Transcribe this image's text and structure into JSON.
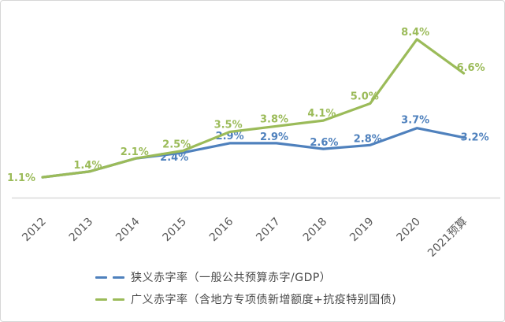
{
  "chart_data": {
    "type": "line",
    "categories": [
      "2012",
      "2013",
      "2014",
      "2015",
      "2016",
      "2017",
      "2018",
      "2019",
      "2020",
      "2021预算"
    ],
    "series": [
      {
        "key": "narrow",
        "name": "狭义赤字率（一般公共预算赤字/GDP）",
        "color": "#4F81BD",
        "values": [
          1.1,
          1.4,
          2.1,
          2.4,
          2.9,
          2.9,
          2.6,
          2.8,
          3.7,
          3.2
        ],
        "point_labels": [
          "",
          "",
          "",
          "2.4%",
          "2.9%",
          "2.9%",
          "2.6%",
          "2.8%",
          "3.7%",
          "3.2%"
        ]
      },
      {
        "key": "broad",
        "name": "广义赤字率（含地方专项债新增额度+抗疫特别国债)",
        "color": "#9BBB59",
        "values": [
          1.1,
          1.4,
          2.1,
          2.5,
          3.5,
          3.8,
          4.1,
          5.0,
          8.4,
          6.6
        ],
        "point_labels": [
          "1.1%",
          "1.4%",
          "2.1%",
          "2.5%",
          "3.5%",
          "3.8%",
          "4.1%",
          "5.0%",
          "8.4%",
          "6.6%"
        ]
      }
    ],
    "title": "",
    "xlabel": "",
    "ylabel": "",
    "ylim": [
      0,
      9
    ],
    "grid": false,
    "y_axis_visible": false,
    "legend_position": "bottom-left",
    "axis_line_color": "#D9D9D9",
    "tick_label_color": "#595959"
  }
}
